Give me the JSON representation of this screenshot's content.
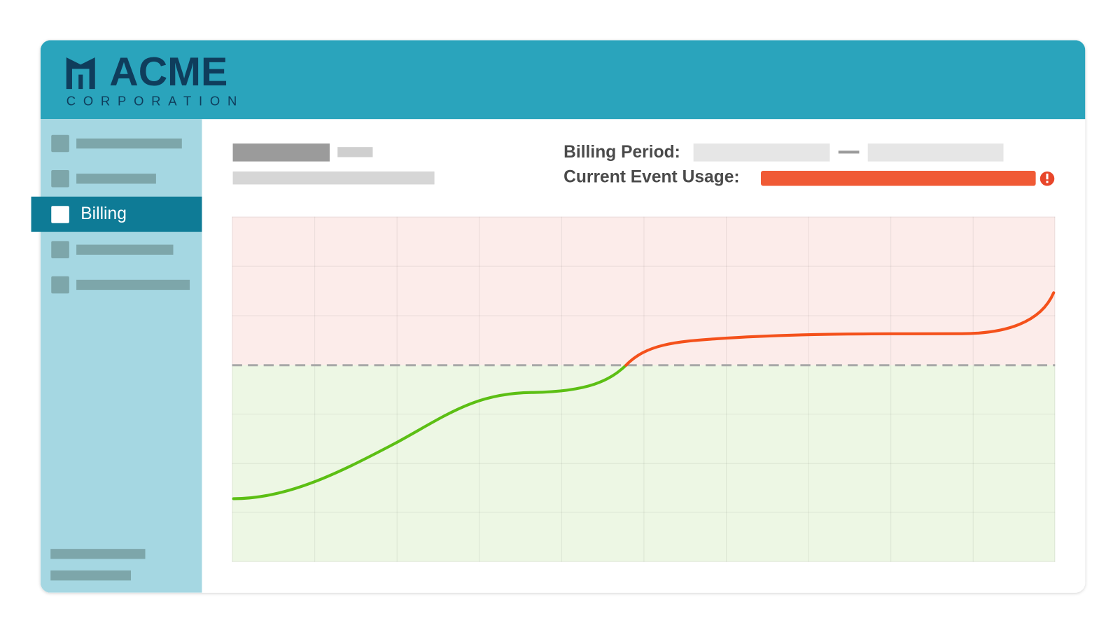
{
  "header": {
    "logo": "ACME",
    "logo_subtitle": "CORPORATION"
  },
  "sidebar": {
    "active_item": "Billing"
  },
  "summary": {
    "billing_period_label": "Billing Period:",
    "usage_label": "Current Event Usage:"
  }
}
